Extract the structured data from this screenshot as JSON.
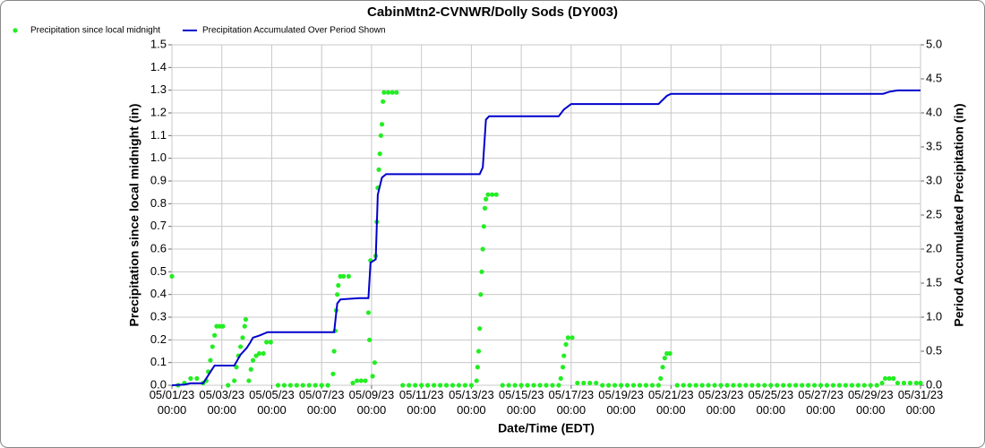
{
  "chart_data": {
    "type": "line",
    "title": "CabinMtn2-CVNWR/Dolly Sods (DY003)",
    "x_label": "Date/Time (EDT)",
    "y_label": "Precipitation since local midnight (in)",
    "y2_label": "Period Accumulated Precipitation (in)",
    "grid": true,
    "legend": "top-left",
    "xlim": [
      "05/01/23 00:00",
      "05/31/23 00:00"
    ],
    "xticks": [
      "05/01/23 00:00",
      "05/03/23 00:00",
      "05/05/23 00:00",
      "05/07/23 00:00",
      "05/09/23 00:00",
      "05/11/23 00:00",
      "05/13/23 00:00",
      "05/15/23 00:00",
      "05/17/23 00:00",
      "05/19/23 00:00",
      "05/21/23 00:00",
      "05/23/23 00:00",
      "05/25/23 00:00",
      "05/27/23 00:00",
      "05/29/23 00:00",
      "05/31/23 00:00"
    ],
    "ylim": [
      0,
      1.5
    ],
    "yticks": [
      {
        "value": 0,
        "label": "0.0"
      },
      0.1,
      0.2,
      0.3,
      0.4,
      0.5,
      0.6,
      0.7,
      0.8,
      0.9,
      {
        "value": 1,
        "label": "1.0"
      },
      1.1,
      1.2,
      1.3,
      1.4,
      1.5
    ],
    "y2lim": [
      0,
      5
    ],
    "y2ticks": [
      {
        "value": 0,
        "label": "0.0"
      },
      0.5,
      {
        "value": 1,
        "label": "1.0"
      },
      1.5,
      {
        "value": 2,
        "label": "2.0"
      },
      2.5,
      {
        "value": 3,
        "label": "3.0"
      },
      3.5,
      {
        "value": 4,
        "label": "4.0"
      },
      4.5,
      {
        "value": 5,
        "label": "5.0"
      }
    ],
    "series": [
      {
        "name": "Precipitation since local midnight",
        "color": "#22ee22",
        "style": "points",
        "x": [
          "05/01/23 00:00",
          "05/01/23 06:00",
          "05/01/23 12:00",
          "05/01/23 18:00",
          "05/02/23 00:00",
          "05/02/23 06:00",
          "05/02/23 09:00",
          "05/02/23 11:00",
          "05/02/23 13:00",
          "05/02/23 15:00",
          "05/02/23 17:00",
          "05/02/23 19:00",
          "05/02/23 22:00",
          "05/03/23 01:00",
          "05/03/23 06:00",
          "05/03/23 12:00",
          "05/03/23 14:00",
          "05/03/23 16:00",
          "05/03/23 18:00",
          "05/03/23 20:00",
          "05/03/23 22:00",
          "05/03/23 23:00",
          "05/04/23 02:00",
          "05/04/23 04:00",
          "05/04/23 06:00",
          "05/04/23 09:00",
          "05/04/23 12:00",
          "05/04/23 16:00",
          "05/04/23 19:00",
          "05/04/23 23:00",
          "05/05/23 06:00",
          "05/05/23 12:00",
          "05/05/23 18:00",
          "05/06/23 00:00",
          "05/06/23 06:00",
          "05/06/23 12:00",
          "05/06/23 18:00",
          "05/07/23 00:00",
          "05/07/23 06:00",
          "05/07/23 11:00",
          "05/07/23 12:00",
          "05/07/23 13:00",
          "05/07/23 14:00",
          "05/07/23 15:00",
          "05/07/23 16:00",
          "05/07/23 18:00",
          "05/07/23 21:00",
          "05/08/23 02:00",
          "05/08/23 06:00",
          "05/08/23 10:00",
          "05/08/23 14:00",
          "05/08/23 18:00",
          "05/08/23 21:00",
          "05/08/23 22:00",
          "05/08/23 23:00",
          "05/09/23 01:00",
          "05/09/23 03:00",
          "05/09/23 04:00",
          "05/09/23 05:00",
          "05/09/23 06:00",
          "05/09/23 07:00",
          "05/09/23 08:00",
          "05/09/23 09:00",
          "05/09/23 10:00",
          "05/09/23 11:00",
          "05/09/23 12:00",
          "05/09/23 16:00",
          "05/09/23 20:00",
          "05/10/23 00:00",
          "05/10/23 06:00",
          "05/10/23 12:00",
          "05/10/23 18:00",
          "05/11/23 00:00",
          "05/11/23 06:00",
          "05/11/23 12:00",
          "05/11/23 18:00",
          "05/12/23 00:00",
          "05/12/23 06:00",
          "05/12/23 12:00",
          "05/12/23 18:00",
          "05/13/23 00:00",
          "05/13/23 05:00",
          "05/13/23 06:00",
          "05/13/23 07:00",
          "05/13/23 08:00",
          "05/13/23 09:00",
          "05/13/23 10:00",
          "05/13/23 11:00",
          "05/13/23 12:00",
          "05/13/23 13:00",
          "05/13/23 14:00",
          "05/13/23 16:00",
          "05/13/23 20:00",
          "05/14/23 00:00",
          "05/14/23 06:00",
          "05/14/23 12:00",
          "05/14/23 18:00",
          "05/15/23 00:00",
          "05/15/23 06:00",
          "05/15/23 12:00",
          "05/15/23 18:00",
          "05/16/23 00:00",
          "05/16/23 06:00",
          "05/16/23 12:00",
          "05/16/23 14:00",
          "05/16/23 16:00",
          "05/16/23 17:00",
          "05/16/23 19:00",
          "05/16/23 21:00",
          "05/17/23 01:00",
          "05/17/23 06:00",
          "05/17/23 12:00",
          "05/17/23 18:00",
          "05/18/23 00:00",
          "05/18/23 06:00",
          "05/18/23 12:00",
          "05/18/23 18:00",
          "05/19/23 00:00",
          "05/19/23 06:00",
          "05/19/23 12:00",
          "05/19/23 18:00",
          "05/20/23 00:00",
          "05/20/23 06:00",
          "05/20/23 12:00",
          "05/20/23 14:00",
          "05/20/23 16:00",
          "05/20/23 18:00",
          "05/20/23 20:00",
          "05/20/23 23:00",
          "05/21/23 06:00",
          "05/21/23 12:00",
          "05/21/23 18:00",
          "05/22/23 00:00",
          "05/22/23 06:00",
          "05/22/23 12:00",
          "05/22/23 18:00",
          "05/23/23 00:00",
          "05/23/23 06:00",
          "05/23/23 12:00",
          "05/23/23 18:00",
          "05/24/23 00:00",
          "05/24/23 06:00",
          "05/24/23 12:00",
          "05/24/23 18:00",
          "05/25/23 00:00",
          "05/25/23 06:00",
          "05/25/23 12:00",
          "05/25/23 18:00",
          "05/26/23 00:00",
          "05/26/23 06:00",
          "05/26/23 12:00",
          "05/26/23 18:00",
          "05/27/23 00:00",
          "05/27/23 06:00",
          "05/27/23 12:00",
          "05/27/23 18:00",
          "05/28/23 00:00",
          "05/28/23 06:00",
          "05/28/23 12:00",
          "05/28/23 18:00",
          "05/29/23 00:00",
          "05/29/23 06:00",
          "05/29/23 11:00",
          "05/29/23 14:00",
          "05/29/23 18:00",
          "05/29/23 22:00",
          "05/30/23 02:00",
          "05/30/23 08:00",
          "05/30/23 14:00",
          "05/30/23 20:00",
          "05/31/23 00:00"
        ],
        "values": [
          0.48,
          0,
          0.01,
          0.03,
          0.03,
          0.01,
          0.02,
          0.06,
          0.11,
          0.17,
          0.22,
          0.26,
          0.26,
          0.26,
          0,
          0.02,
          0.08,
          0.13,
          0.17,
          0.21,
          0.26,
          0.29,
          0.02,
          0.07,
          0.11,
          0.13,
          0.14,
          0.14,
          0.19,
          0.19,
          0,
          0,
          0,
          0,
          0,
          0,
          0,
          0,
          0,
          0.05,
          0.15,
          0.24,
          0.33,
          0.4,
          0.44,
          0.48,
          0.48,
          0.48,
          0.01,
          0.02,
          0.02,
          0.02,
          0.32,
          0.2,
          0.55,
          0.04,
          0.1,
          0.57,
          0.72,
          0.87,
          0.95,
          1.02,
          1.1,
          1.15,
          1.25,
          1.29,
          1.29,
          1.29,
          1.29,
          0,
          0,
          0,
          0,
          0,
          0,
          0,
          0,
          0,
          0,
          0,
          0,
          0.02,
          0.08,
          0.15,
          0.25,
          0.4,
          0.5,
          0.6,
          0.7,
          0.78,
          0.82,
          0.84,
          0.84,
          0.84,
          0,
          0,
          0,
          0,
          0,
          0,
          0,
          0,
          0,
          0,
          0.03,
          0.08,
          0.13,
          0.18,
          0.21,
          0.21,
          0.01,
          0.01,
          0.01,
          0.01,
          0,
          0,
          0,
          0,
          0,
          0,
          0,
          0,
          0,
          0,
          0.03,
          0.08,
          0.12,
          0.14,
          0.14,
          0,
          0,
          0,
          0,
          0,
          0,
          0,
          0,
          0,
          0,
          0,
          0,
          0,
          0,
          0,
          0,
          0,
          0,
          0,
          0,
          0,
          0,
          0,
          0,
          0,
          0,
          0,
          0,
          0,
          0,
          0,
          0,
          0,
          0.01,
          0.03,
          0.03,
          0.03,
          0.01,
          0.01,
          0.01,
          0.01,
          0.01
        ]
      },
      {
        "name": "Precipitation Accumulated Over Period Shown",
        "color": "#0000cc",
        "style": "line",
        "axis": "y2",
        "x": [
          "05/01/23 00:00",
          "05/01/23 12:00",
          "05/01/23 18:00",
          "05/02/23 06:00",
          "05/02/23 09:00",
          "05/02/23 14:00",
          "05/02/23 17:00",
          "05/03/23 12:00",
          "05/03/23 18:00",
          "05/04/23 00:00",
          "05/04/23 03:00",
          "05/04/23 06:00",
          "05/04/23 12:00",
          "05/04/23 20:00",
          "05/07/23 12:00",
          "05/07/23 15:00",
          "05/07/23 18:00",
          "05/08/23 12:00",
          "05/08/23 21:00",
          "05/08/23 23:00",
          "05/09/23 04:00",
          "05/09/23 06:00",
          "05/09/23 10:00",
          "05/09/23 14:00",
          "05/13/23 08:00",
          "05/13/23 11:00",
          "05/13/23 14:00",
          "05/13/23 17:00",
          "05/16/23 12:00",
          "05/16/23 17:00",
          "05/17/23 00:00",
          "05/20/23 12:00",
          "05/20/23 20:00",
          "05/21/23 00:00",
          "05/29/23 12:00",
          "05/29/23 18:00",
          "05/30/23 02:00",
          "05/31/23 00:00"
        ],
        "values": [
          0,
          0.01,
          0.03,
          0.03,
          0.1,
          0.22,
          0.29,
          0.29,
          0.45,
          0.55,
          0.62,
          0.7,
          0.73,
          0.78,
          0.78,
          1.2,
          1.26,
          1.28,
          1.28,
          1.8,
          1.85,
          2.8,
          3.05,
          3.1,
          3.1,
          3.2,
          3.9,
          3.95,
          3.95,
          4.05,
          4.13,
          4.13,
          4.25,
          4.28,
          4.28,
          4.31,
          4.33,
          4.33
        ]
      }
    ]
  }
}
